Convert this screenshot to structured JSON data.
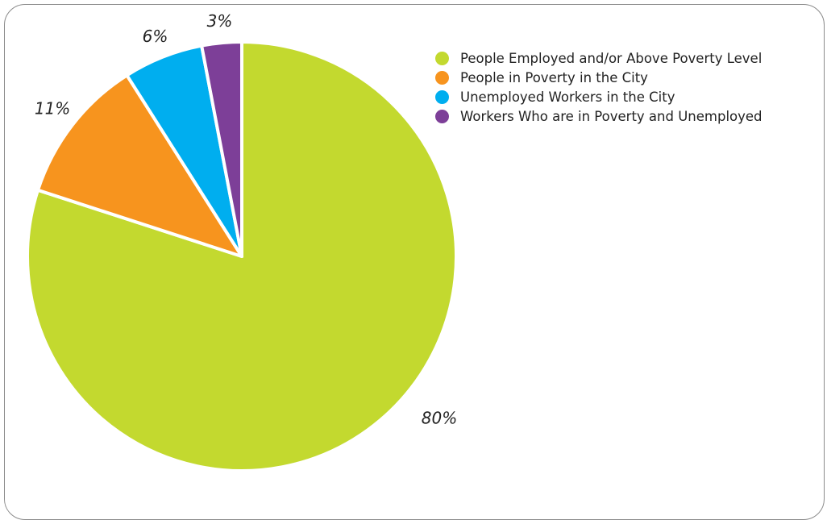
{
  "chart_data": {
    "type": "pie",
    "title": "",
    "slices": [
      {
        "label": "People Employed and/or Above Poverty Level",
        "value": 80,
        "display": "80%",
        "color": "#c3d92f"
      },
      {
        "label": "People in Poverty in the City",
        "value": 11,
        "display": "11%",
        "color": "#f7941e"
      },
      {
        "label": "Unemployed Workers in the City",
        "value": 6,
        "display": "6%",
        "color": "#00aeef"
      },
      {
        "label": "Workers Who are in Poverty and Unemployed",
        "value": 3,
        "display": "3%",
        "color": "#7d3f98"
      }
    ],
    "legend_position": "top-right"
  }
}
